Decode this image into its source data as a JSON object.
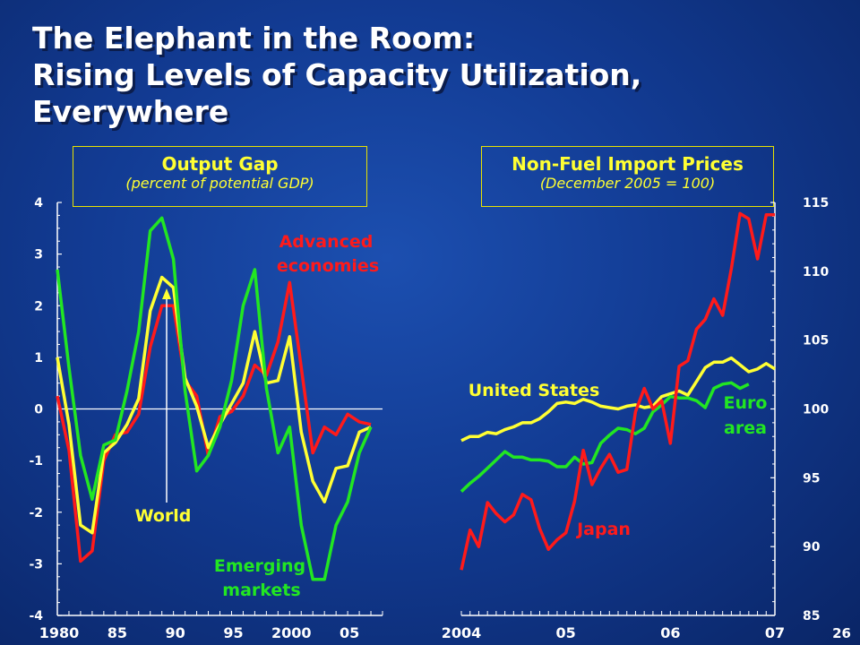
{
  "title_lines": [
    "The Elephant in the Room:",
    "Rising Levels of Capacity Utilization,",
    "Everywhere"
  ],
  "page_number": "26",
  "colors": {
    "advanced": "#ff1a1a",
    "world": "#ffff33",
    "emerging": "#22e622",
    "us": "#ffff33",
    "euro": "#22e622",
    "japan": "#ff1a1a",
    "axis": "#ffffff",
    "background": "#123b93"
  },
  "chart_data": [
    {
      "type": "line",
      "title": "Output Gap",
      "subtitle": "(percent of potential GDP)",
      "x_tick_labels": [
        "1980",
        "85",
        "90",
        "95",
        "2000",
        "05"
      ],
      "x_ticks": [
        1980,
        1985,
        1990,
        1995,
        2000,
        2005
      ],
      "xlim": [
        1980,
        2008
      ],
      "ylim": [
        -4,
        4
      ],
      "y_ticks": [
        -4,
        -3,
        -2,
        -1,
        0,
        1,
        2,
        3,
        4
      ],
      "y_axis_side": "left",
      "zero_line": true,
      "series": [
        {
          "name": "Advanced economies",
          "color_key": "advanced",
          "x": [
            1980,
            1981,
            1982,
            1983,
            1984,
            1985,
            1986,
            1987,
            1988,
            1989,
            1990,
            1991,
            1992,
            1993,
            1994,
            1995,
            1996,
            1997,
            1998,
            1999,
            2000,
            2001,
            2002,
            2003,
            2004,
            2005,
            2006,
            2007
          ],
          "values": [
            0.25,
            -0.8,
            -2.95,
            -2.75,
            -1.0,
            -0.5,
            -0.45,
            -0.1,
            1.2,
            2.0,
            2.0,
            0.55,
            0.25,
            -0.9,
            -0.15,
            -0.05,
            0.25,
            0.85,
            0.65,
            1.3,
            2.45,
            0.8,
            -0.85,
            -0.35,
            -0.5,
            -0.1,
            -0.25,
            -0.3
          ]
        },
        {
          "name": "World",
          "color_key": "world",
          "x": [
            1980,
            1981,
            1982,
            1983,
            1984,
            1985,
            1986,
            1987,
            1988,
            1989,
            1990,
            1991,
            1992,
            1993,
            1994,
            1995,
            1996,
            1997,
            1998,
            1999,
            2000,
            2001,
            2002,
            2003,
            2004,
            2005,
            2006,
            2007
          ],
          "values": [
            1.0,
            -0.3,
            -2.25,
            -2.4,
            -0.85,
            -0.65,
            -0.3,
            0.2,
            1.9,
            2.55,
            2.35,
            0.6,
            0.05,
            -0.75,
            -0.3,
            0.1,
            0.5,
            1.5,
            0.5,
            0.55,
            1.4,
            -0.45,
            -1.4,
            -1.8,
            -1.15,
            -1.1,
            -0.45,
            -0.35
          ]
        },
        {
          "name": "Emerging markets",
          "color_key": "emerging",
          "x": [
            1980,
            1981,
            1982,
            1983,
            1984,
            1985,
            1986,
            1987,
            1988,
            1989,
            1990,
            1991,
            1992,
            1993,
            1994,
            1995,
            1996,
            1997,
            1998,
            1999,
            2000,
            2001,
            2002,
            2003,
            2004,
            2005,
            2006,
            2007
          ],
          "values": [
            2.7,
            0.8,
            -0.9,
            -1.75,
            -0.7,
            -0.6,
            0.35,
            1.5,
            3.45,
            3.7,
            2.9,
            0.35,
            -1.2,
            -0.9,
            -0.35,
            0.55,
            2.0,
            2.7,
            0.4,
            -0.85,
            -0.35,
            -2.25,
            -3.3,
            -3.3,
            -2.25,
            -1.8,
            -0.85,
            -0.35
          ]
        }
      ],
      "labels": {
        "advanced": [
          "Advanced",
          "economies"
        ],
        "world": "World",
        "emerging": [
          "Emerging",
          "markets"
        ]
      }
    },
    {
      "type": "line",
      "title": "Non-Fuel Import Prices",
      "subtitle": "(December 2005 = 100)",
      "x_tick_labels": [
        "2004",
        "05",
        "06",
        "07"
      ],
      "x_ticks": [
        2004,
        2005,
        2006,
        2007
      ],
      "xlim": [
        2004,
        2007
      ],
      "ylim": [
        85,
        115
      ],
      "y_ticks": [
        85,
        90,
        95,
        100,
        105,
        110,
        115
      ],
      "y_axis_side": "right",
      "series": [
        {
          "name": "United States",
          "color_key": "us",
          "x": [
            2004.0,
            2004.0833,
            2004.1667,
            2004.25,
            2004.3333,
            2004.4167,
            2004.5,
            2004.5833,
            2004.6667,
            2004.75,
            2004.8333,
            2004.9167,
            2005.0,
            2005.0833,
            2005.1667,
            2005.25,
            2005.3333,
            2005.4167,
            2005.5,
            2005.5833,
            2005.6667,
            2005.75,
            2005.8333,
            2005.9167,
            2006.0,
            2006.0833,
            2006.1667,
            2006.25,
            2006.3333,
            2006.4167,
            2006.5,
            2006.5833,
            2006.6667,
            2006.75,
            2006.8333,
            2006.9167,
            2007.0
          ],
          "values": [
            97.7,
            98.0,
            98.0,
            98.3,
            98.2,
            98.5,
            98.7,
            99.0,
            99.0,
            99.3,
            99.8,
            100.4,
            100.5,
            100.4,
            100.7,
            100.5,
            100.2,
            100.1,
            100.0,
            100.2,
            100.3,
            100.1,
            100.2,
            100.9,
            101.1,
            101.3,
            101.0,
            102.0,
            103.0,
            103.4,
            103.4,
            103.7,
            103.2,
            102.7,
            102.9,
            103.3,
            102.9
          ]
        },
        {
          "name": "Euro area",
          "color_key": "euro",
          "x": [
            2004.0,
            2004.0833,
            2004.1667,
            2004.25,
            2004.3333,
            2004.4167,
            2004.5,
            2004.5833,
            2004.6667,
            2004.75,
            2004.8333,
            2004.9167,
            2005.0,
            2005.0833,
            2005.1667,
            2005.25,
            2005.3333,
            2005.4167,
            2005.5,
            2005.5833,
            2005.6667,
            2005.75,
            2005.8333,
            2005.9167,
            2006.0,
            2006.0833,
            2006.1667,
            2006.25,
            2006.3333,
            2006.4167,
            2006.5,
            2006.5833,
            2006.6667,
            2006.75
          ],
          "values": [
            94.0,
            94.6,
            95.1,
            95.7,
            96.3,
            96.9,
            96.5,
            96.5,
            96.3,
            96.3,
            96.2,
            95.8,
            95.8,
            96.5,
            96.0,
            96.1,
            97.5,
            98.1,
            98.6,
            98.5,
            98.2,
            98.6,
            99.8,
            100.3,
            100.9,
            100.8,
            100.8,
            100.6,
            100.1,
            101.5,
            101.8,
            101.9,
            101.5,
            101.8
          ]
        },
        {
          "name": "Japan",
          "color_key": "japan",
          "x": [
            2004.0,
            2004.0833,
            2004.1667,
            2004.25,
            2004.3333,
            2004.4167,
            2004.5,
            2004.5833,
            2004.6667,
            2004.75,
            2004.8333,
            2004.9167,
            2005.0,
            2005.0833,
            2005.1667,
            2005.25,
            2005.3333,
            2005.4167,
            2005.5,
            2005.5833,
            2005.6667,
            2005.75,
            2005.8333,
            2005.9167,
            2006.0,
            2006.0833,
            2006.1667,
            2006.25,
            2006.3333,
            2006.4167,
            2006.5,
            2006.5833,
            2006.6667,
            2006.75,
            2006.8333,
            2006.9167,
            2007.0
          ],
          "values": [
            88.3,
            91.2,
            90.0,
            93.2,
            92.4,
            91.8,
            92.3,
            93.8,
            93.4,
            91.3,
            89.8,
            90.5,
            91.0,
            93.3,
            97.0,
            94.5,
            95.7,
            96.7,
            95.4,
            95.6,
            99.8,
            101.5,
            100.0,
            100.6,
            97.5,
            103.1,
            103.5,
            105.8,
            106.5,
            108.0,
            106.8,
            110.2,
            114.2,
            113.8,
            110.9,
            114.1,
            114.1
          ]
        }
      ],
      "labels": {
        "us": "United States",
        "euro": [
          "Euro",
          "area"
        ],
        "japan": "Japan"
      }
    }
  ]
}
